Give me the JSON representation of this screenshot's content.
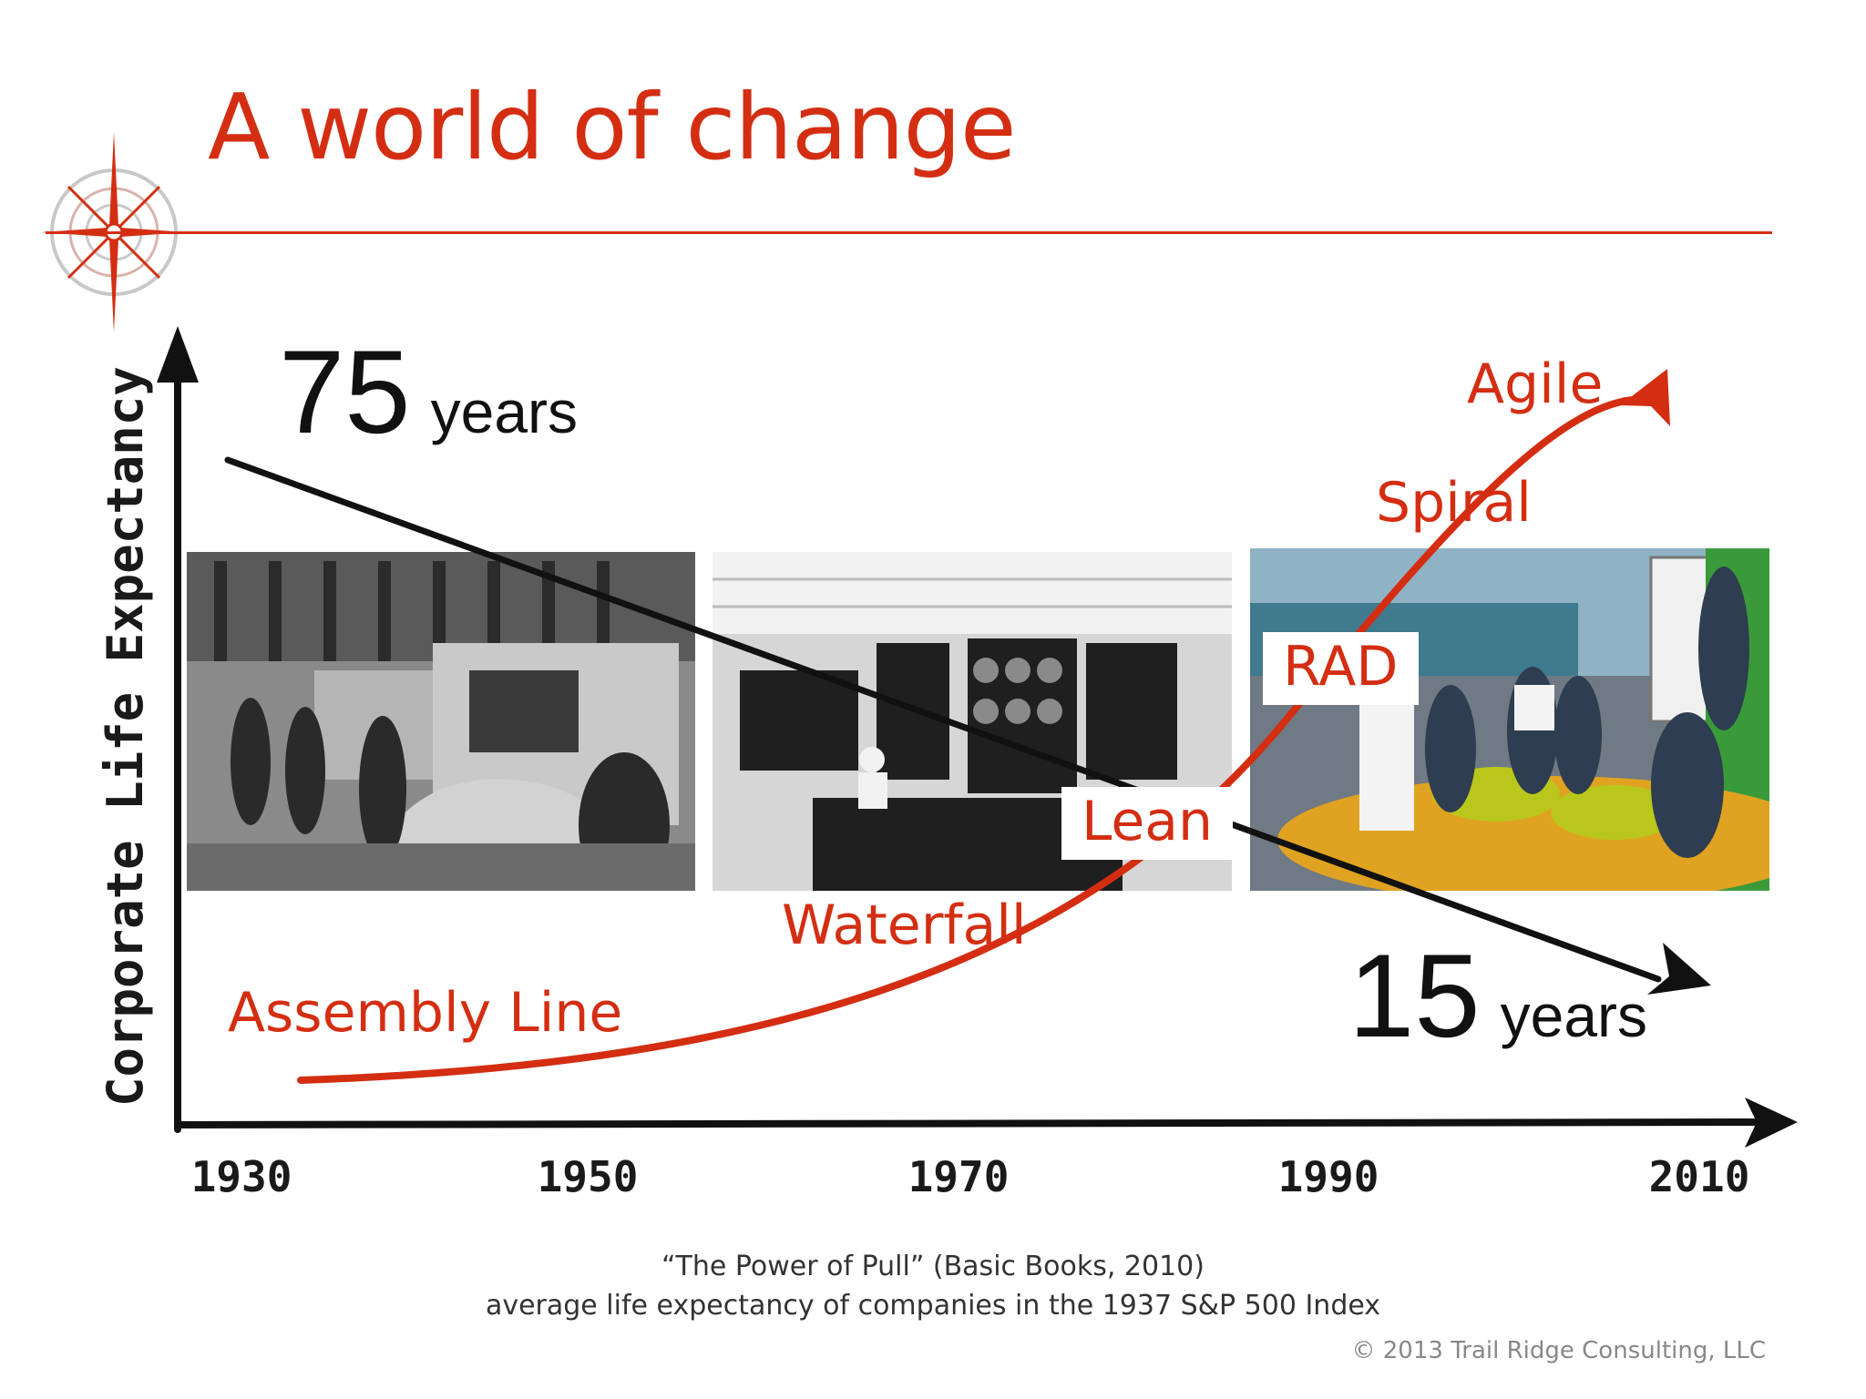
{
  "title": "A world of change",
  "chart_data": {
    "type": "line",
    "ylabel": "Corporate Life Expectancy",
    "categories": [
      "1930",
      "1950",
      "1970",
      "1990",
      "2010"
    ],
    "start_label": {
      "value": "75",
      "unit": "years"
    },
    "end_label": {
      "value": "15",
      "unit": "years"
    },
    "series": [
      {
        "values": [
          75,
          15
        ],
        "x": [
          "1930",
          "2010"
        ]
      }
    ],
    "methodologies": [
      {
        "label": "Assembly Line",
        "year": 1934
      },
      {
        "label": "Waterfall",
        "year": 1970
      },
      {
        "label": "Lean",
        "year": 1980
      },
      {
        "label": "RAD",
        "year": 1990
      },
      {
        "label": "Spiral",
        "year": 1995
      },
      {
        "label": "Agile",
        "year": 2010
      }
    ]
  },
  "source": {
    "line1": "“The Power of Pull” (Basic Books, 2010)",
    "line2": "average life expectancy of companies in the 1937 S&P 500 Index"
  },
  "copyright": "© 2013 Trail Ridge Consulting, LLC",
  "colors": {
    "accent": "#d42e12",
    "ink": "#111111"
  },
  "icons": [
    "compass-rose-icon"
  ]
}
